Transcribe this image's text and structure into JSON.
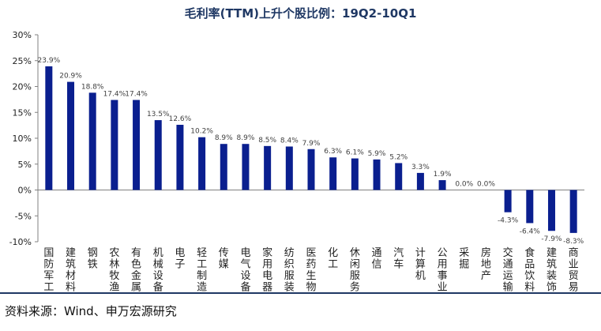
{
  "chart_data": {
    "type": "bar",
    "title": "毛利率(TTM)上升个股比例：19Q2-10Q1",
    "ylim": [
      -10,
      30
    ],
    "yticks": [
      "-10%",
      "-5%",
      "0%",
      "5%",
      "10%",
      "15%",
      "20%",
      "25%",
      "30%"
    ],
    "ytick_values": [
      -10,
      -5,
      0,
      5,
      10,
      15,
      20,
      25,
      30
    ],
    "categories": [
      "国防军工",
      "建筑材料",
      "钢铁",
      "农林牧渔",
      "有色金属",
      "机械设备",
      "电子",
      "轻工制造",
      "传媒",
      "电气设备",
      "家用电器",
      "纺织服装",
      "医药生物",
      "化工",
      "休闲服务",
      "通信",
      "汽车",
      "计算机",
      "公用事业",
      "采掘",
      "房地产",
      "交通运输",
      "食品饮料",
      "建筑装饰",
      "商业贸易"
    ],
    "values": [
      23.9,
      20.9,
      18.8,
      17.4,
      17.4,
      13.5,
      12.6,
      10.2,
      8.9,
      8.9,
      8.5,
      8.4,
      7.9,
      6.3,
      6.1,
      5.9,
      5.2,
      3.3,
      1.9,
      0.0,
      0.0,
      -4.3,
      -6.4,
      -7.9,
      -8.3
    ],
    "labels": [
      "23.9%",
      "20.9%",
      "18.8%",
      "17.4%",
      "17.4%",
      "13.5%",
      "12.6%",
      "10.2%",
      "8.9%",
      "8.9%",
      "8.5%",
      "8.4%",
      "7.9%",
      "6.3%",
      "6.1%",
      "5.9%",
      "5.2%",
      "3.3%",
      "1.9%",
      "0.0%",
      "0.0%",
      "-4.3%",
      "-6.4%",
      "-7.9%",
      "-8.3%"
    ],
    "bar_color": "#0A1F8F",
    "grid": false
  },
  "source": "资料来源：Wind、申万宏源研究",
  "colors": {
    "title": "#1F3864",
    "axis": "#808080",
    "label": "#404040",
    "rule": "#1F3864"
  }
}
